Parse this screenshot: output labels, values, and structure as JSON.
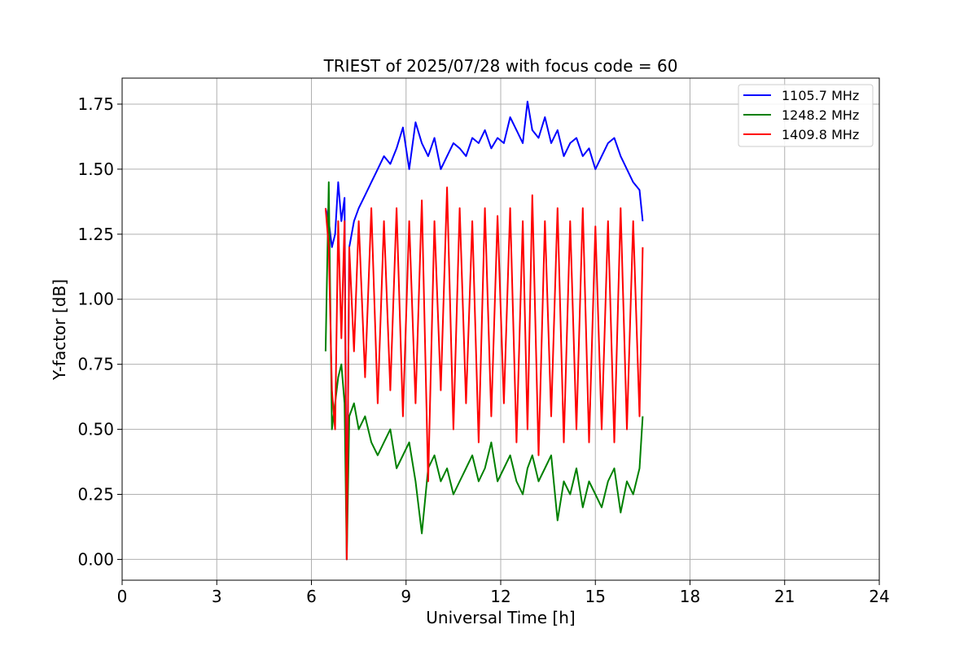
{
  "chart_data": {
    "type": "line",
    "title": "TRIEST of 2025/07/28 with focus code = 60",
    "xlabel": "Universal Time [h]",
    "ylabel": "Y-factor [dB]",
    "xlim": [
      0,
      24
    ],
    "ylim": [
      -0.08,
      1.85
    ],
    "xticks": [
      0,
      3,
      6,
      9,
      12,
      15,
      18,
      21,
      24
    ],
    "xtick_labels": [
      "0",
      "3",
      "6",
      "9",
      "12",
      "15",
      "18",
      "21",
      "24"
    ],
    "yticks": [
      0.0,
      0.25,
      0.5,
      0.75,
      1.0,
      1.25,
      1.5,
      1.75
    ],
    "ytick_labels": [
      "0.00",
      "0.25",
      "0.50",
      "0.75",
      "1.00",
      "1.25",
      "1.50",
      "1.75"
    ],
    "grid": true,
    "legend_position": "top-right",
    "series": [
      {
        "name": "1105.7 MHz",
        "color": "#0000ff",
        "x": [
          6.45,
          6.55,
          6.65,
          6.75,
          6.85,
          6.95,
          7.05,
          7.12,
          7.2,
          7.35,
          7.5,
          7.7,
          7.9,
          8.1,
          8.3,
          8.5,
          8.7,
          8.9,
          9.1,
          9.3,
          9.5,
          9.7,
          9.9,
          10.1,
          10.3,
          10.5,
          10.7,
          10.9,
          11.1,
          11.3,
          11.5,
          11.7,
          11.9,
          12.1,
          12.3,
          12.5,
          12.7,
          12.85,
          13.0,
          13.2,
          13.4,
          13.6,
          13.8,
          14.0,
          14.2,
          14.4,
          14.6,
          14.8,
          15.0,
          15.2,
          15.4,
          15.6,
          15.8,
          16.0,
          16.2,
          16.4,
          16.5
        ],
        "y": [
          1.35,
          1.3,
          1.2,
          1.25,
          1.45,
          1.3,
          1.39,
          0.0,
          1.2,
          1.3,
          1.35,
          1.4,
          1.45,
          1.5,
          1.55,
          1.52,
          1.58,
          1.66,
          1.5,
          1.68,
          1.6,
          1.55,
          1.62,
          1.5,
          1.55,
          1.6,
          1.58,
          1.55,
          1.62,
          1.6,
          1.65,
          1.58,
          1.62,
          1.6,
          1.7,
          1.65,
          1.6,
          1.76,
          1.65,
          1.62,
          1.7,
          1.6,
          1.65,
          1.55,
          1.6,
          1.62,
          1.55,
          1.58,
          1.5,
          1.55,
          1.6,
          1.62,
          1.55,
          1.5,
          1.45,
          1.42,
          1.3
        ]
      },
      {
        "name": "1248.2 MHz",
        "color": "#008000",
        "x": [
          6.45,
          6.55,
          6.65,
          6.75,
          6.85,
          6.95,
          7.05,
          7.12,
          7.2,
          7.35,
          7.5,
          7.7,
          7.9,
          8.1,
          8.3,
          8.5,
          8.7,
          8.9,
          9.1,
          9.3,
          9.5,
          9.7,
          9.9,
          10.1,
          10.3,
          10.5,
          10.7,
          10.9,
          11.1,
          11.3,
          11.5,
          11.7,
          11.9,
          12.1,
          12.3,
          12.5,
          12.7,
          12.85,
          13.0,
          13.2,
          13.4,
          13.6,
          13.8,
          14.0,
          14.2,
          14.4,
          14.6,
          14.8,
          15.0,
          15.2,
          15.4,
          15.6,
          15.8,
          16.0,
          16.2,
          16.4,
          16.5
        ],
        "y": [
          0.8,
          1.45,
          0.5,
          0.6,
          0.7,
          0.75,
          0.6,
          0.0,
          0.55,
          0.6,
          0.5,
          0.55,
          0.45,
          0.4,
          0.45,
          0.5,
          0.35,
          0.4,
          0.45,
          0.3,
          0.1,
          0.35,
          0.4,
          0.3,
          0.35,
          0.25,
          0.3,
          0.35,
          0.4,
          0.3,
          0.35,
          0.45,
          0.3,
          0.35,
          0.4,
          0.3,
          0.25,
          0.35,
          0.4,
          0.3,
          0.35,
          0.4,
          0.15,
          0.3,
          0.25,
          0.35,
          0.2,
          0.3,
          0.25,
          0.2,
          0.3,
          0.35,
          0.18,
          0.3,
          0.25,
          0.35,
          0.55
        ]
      },
      {
        "name": "1409.8 MHz",
        "color": "#ff0000",
        "x": [
          6.45,
          6.55,
          6.65,
          6.75,
          6.85,
          6.95,
          7.05,
          7.12,
          7.2,
          7.35,
          7.5,
          7.7,
          7.9,
          8.1,
          8.3,
          8.5,
          8.7,
          8.9,
          9.1,
          9.3,
          9.5,
          9.7,
          9.9,
          10.1,
          10.3,
          10.5,
          10.7,
          10.9,
          11.1,
          11.3,
          11.5,
          11.7,
          11.9,
          12.1,
          12.3,
          12.5,
          12.7,
          12.85,
          13.0,
          13.2,
          13.4,
          13.6,
          13.8,
          14.0,
          14.2,
          14.4,
          14.6,
          14.8,
          15.0,
          15.2,
          15.4,
          15.6,
          15.8,
          16.0,
          16.2,
          16.4,
          16.5
        ],
        "y": [
          1.35,
          1.2,
          0.65,
          0.5,
          1.3,
          0.85,
          1.3,
          0.0,
          1.2,
          0.8,
          1.3,
          0.7,
          1.35,
          0.6,
          1.3,
          0.65,
          1.35,
          0.55,
          1.3,
          0.6,
          1.38,
          0.3,
          1.3,
          0.65,
          1.43,
          0.5,
          1.35,
          0.6,
          1.3,
          0.45,
          1.35,
          0.55,
          1.32,
          0.6,
          1.35,
          0.45,
          1.3,
          0.5,
          1.4,
          0.4,
          1.3,
          0.55,
          1.35,
          0.45,
          1.3,
          0.5,
          1.35,
          0.45,
          1.28,
          0.5,
          1.3,
          0.45,
          1.35,
          0.5,
          1.3,
          0.55,
          1.2
        ]
      }
    ]
  }
}
